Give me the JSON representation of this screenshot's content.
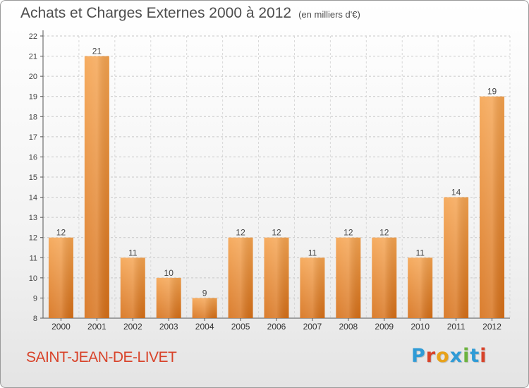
{
  "title": "Achats et Charges Externes 2000 à 2012",
  "subtitle": "(en milliers d'€)",
  "commune": "SAINT-JEAN-DE-LIVET",
  "logo": "Proxiti",
  "colors": {
    "bar_light": "#f5a34f",
    "bar_dark": "#d66f17",
    "commune": "#d8432a",
    "logo": [
      "#2f9bd6",
      "#d8432a",
      "#e8a21a",
      "#2f9bd6",
      "#6cb33e",
      "#2f9bd6",
      "#d8432a"
    ]
  },
  "chart_data": {
    "type": "bar",
    "categories": [
      "2000",
      "2001",
      "2002",
      "2003",
      "2004",
      "2005",
      "2006",
      "2007",
      "2008",
      "2009",
      "2010",
      "2011",
      "2012"
    ],
    "values": [
      12,
      21,
      11,
      10,
      9,
      12,
      12,
      11,
      12,
      12,
      11,
      14,
      19
    ],
    "ylim": [
      8,
      22
    ],
    "yticks": [
      8,
      9,
      10,
      11,
      12,
      13,
      14,
      15,
      16,
      17,
      18,
      19,
      20,
      21,
      22
    ],
    "grid": true,
    "data_labels": true
  }
}
